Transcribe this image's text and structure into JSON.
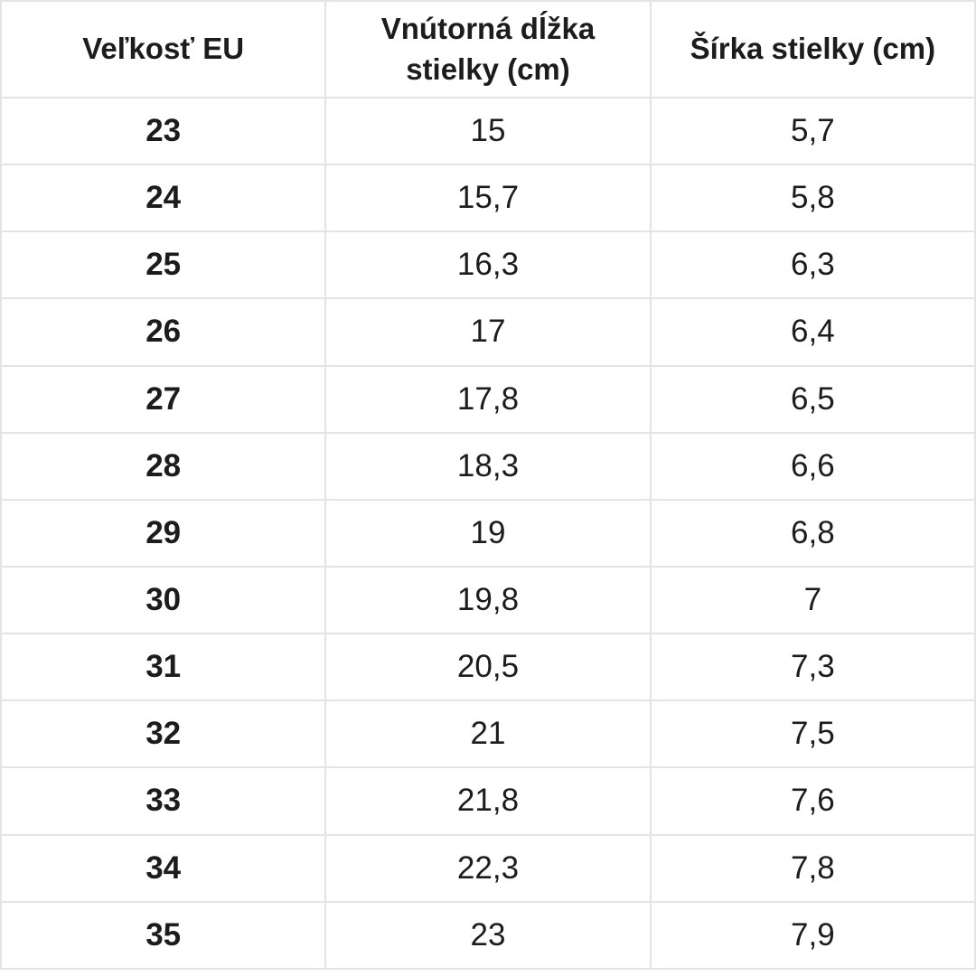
{
  "chart_data": {
    "type": "table",
    "title": "",
    "columns": [
      "Veľkosť EU",
      "Vnútorná dĺžka stielky (cm)",
      "Šírka stielky (cm)"
    ],
    "rows": [
      [
        "23",
        "15",
        "5,7"
      ],
      [
        "24",
        "15,7",
        "5,8"
      ],
      [
        "25",
        "16,3",
        "6,3"
      ],
      [
        "26",
        "17",
        "6,4"
      ],
      [
        "27",
        "17,8",
        "6,5"
      ],
      [
        "28",
        "18,3",
        "6,6"
      ],
      [
        "29",
        "19",
        "6,8"
      ],
      [
        "30",
        "19,8",
        "7"
      ],
      [
        "31",
        "20,5",
        "7,3"
      ],
      [
        "32",
        "21",
        "7,5"
      ],
      [
        "33",
        "21,8",
        "7,6"
      ],
      [
        "34",
        "22,3",
        "7,8"
      ],
      [
        "35",
        "23",
        "7,9"
      ]
    ]
  },
  "table": {
    "headers": {
      "size": "Veľkosť EU",
      "inner_length": "Vnútorná dĺžka stielky (cm)",
      "width": "Šírka stielky (cm)"
    }
  },
  "colors": {
    "border": "#e4e4e4",
    "header_text": "#111111",
    "cell_text": "#222222",
    "background": "#ffffff"
  }
}
